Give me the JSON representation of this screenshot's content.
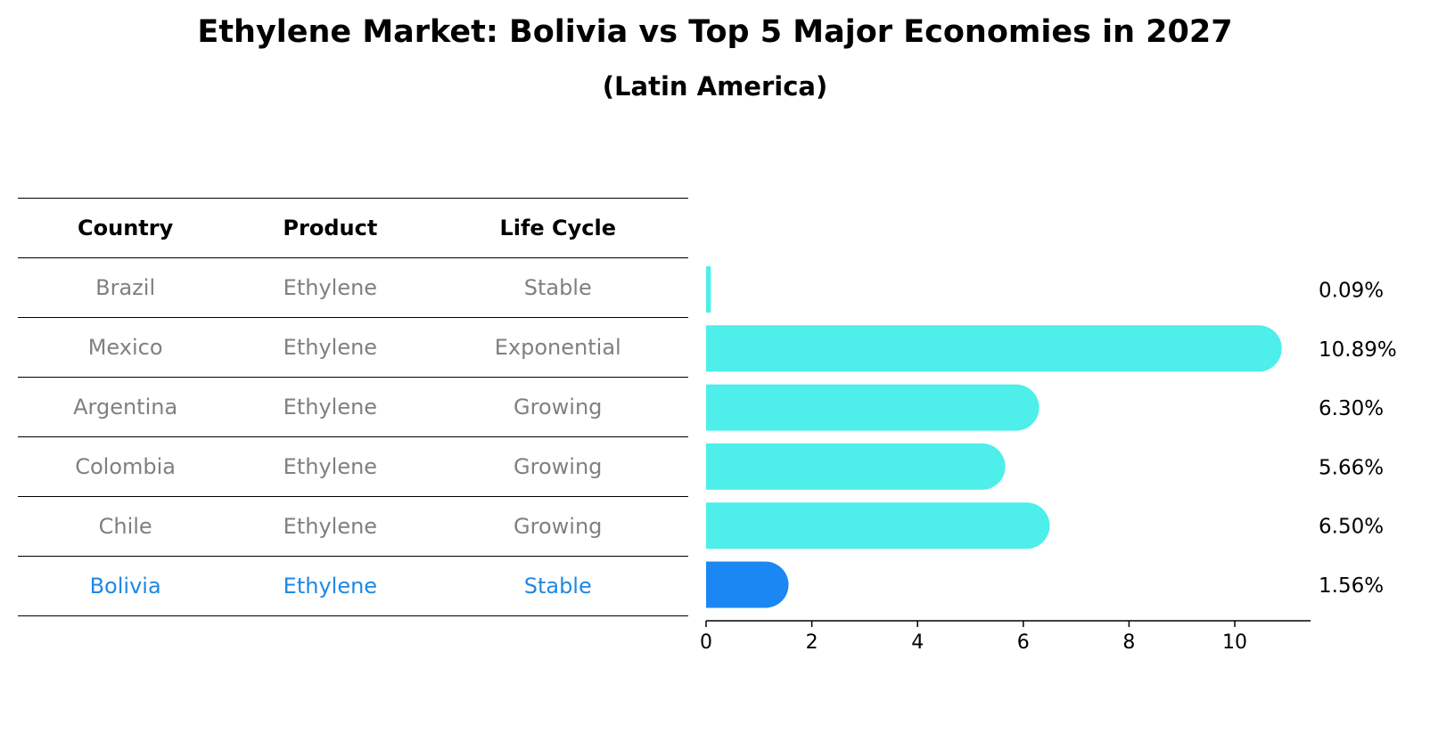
{
  "chart_data": {
    "type": "bar",
    "title": "Ethylene Market: Bolivia vs Top 5 Major Economies in 2027",
    "subtitle": "(Latin America)",
    "orientation": "horizontal",
    "table": {
      "columns": [
        "Country",
        "Product",
        "Life Cycle"
      ],
      "rows": [
        [
          "Brazil",
          "Ethylene",
          "Stable"
        ],
        [
          "Mexico",
          "Ethylene",
          "Exponential"
        ],
        [
          "Argentina",
          "Ethylene",
          "Growing"
        ],
        [
          "Colombia",
          "Ethylene",
          "Growing"
        ],
        [
          "Chile",
          "Ethylene",
          "Growing"
        ],
        [
          "Bolivia",
          "Ethylene",
          "Stable"
        ]
      ],
      "highlight_row": 5
    },
    "categories": [
      "Brazil",
      "Mexico",
      "Argentina",
      "Colombia",
      "Chile",
      "Bolivia"
    ],
    "values": [
      0.09,
      10.89,
      6.3,
      5.66,
      6.5,
      1.56
    ],
    "value_labels": [
      "0.09%",
      "10.89%",
      "6.30%",
      "5.66%",
      "6.50%",
      "1.56%"
    ],
    "xlim": [
      0,
      11.4
    ],
    "xticks": [
      0,
      2,
      4,
      6,
      8,
      10
    ],
    "tick_labels": [
      "0",
      "2",
      "4",
      "6",
      "8",
      "10"
    ],
    "xlabel": "",
    "ylabel": "",
    "grid": false,
    "colors": {
      "bar": "#4eeeeb",
      "highlight": "#1b87f3",
      "text_muted": "#808080",
      "text_highlight": "#1e88e5"
    }
  }
}
